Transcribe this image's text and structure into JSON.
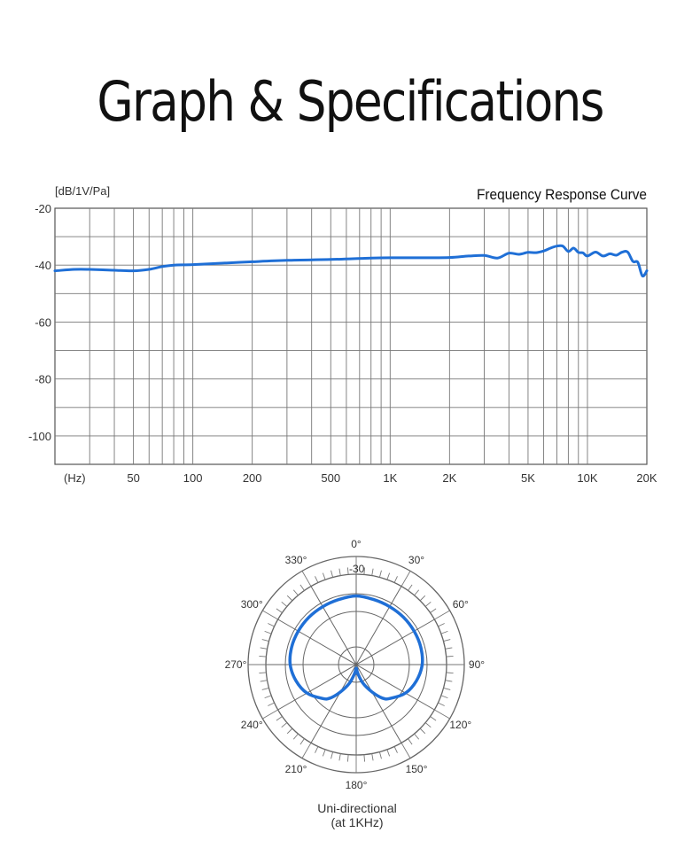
{
  "page": {
    "title": "Graph & Specifications"
  },
  "chart_data": [
    {
      "type": "line",
      "title": "Frequency Response Curve",
      "ylabel": "[dB/1V/Pa]",
      "xlabel": "(Hz)",
      "x_scale": "log",
      "xlim": [
        20,
        20000
      ],
      "ylim": [
        -110,
        -20
      ],
      "y_ticks": [
        -20,
        -40,
        -60,
        -80,
        -100
      ],
      "y_tick_labels": [
        "-20",
        "-40",
        "-60",
        "-80",
        "-100"
      ],
      "x_ticks": [
        50,
        100,
        200,
        500,
        1000,
        2000,
        5000,
        10000,
        20000
      ],
      "x_tick_labels": [
        "50",
        "100",
        "200",
        "500",
        "1K",
        "2K",
        "5K",
        "10K",
        "20K"
      ],
      "grid": true,
      "series": [
        {
          "color": "#1f6fd6",
          "x": [
            20,
            25,
            30,
            40,
            50,
            60,
            70,
            80,
            100,
            150,
            200,
            300,
            500,
            800,
            1000,
            1500,
            2000,
            2500,
            3000,
            3500,
            4000,
            4500,
            5000,
            5500,
            6000,
            6500,
            7000,
            7500,
            8000,
            8500,
            9000,
            9500,
            10000,
            11000,
            12000,
            13000,
            14000,
            15000,
            16000,
            17000,
            18000,
            19000,
            20000
          ],
          "y": [
            -42,
            -41.5,
            -41.5,
            -41.8,
            -42,
            -41.5,
            -40.5,
            -40,
            -39.8,
            -39.2,
            -38.8,
            -38.3,
            -38,
            -37.5,
            -37.4,
            -37.4,
            -37.3,
            -36.8,
            -36.6,
            -37.5,
            -35.8,
            -36.2,
            -35.5,
            -35.6,
            -35,
            -34,
            -33.3,
            -33.3,
            -35.2,
            -34,
            -35.5,
            -35.7,
            -36.8,
            -35.4,
            -36.8,
            -36,
            -36.5,
            -35.4,
            -35.4,
            -38.7,
            -39,
            -43.8,
            -42
          ]
        }
      ]
    },
    {
      "type": "polar",
      "title": "Uni-directional",
      "subtitle": "(at 1KHz)",
      "ring_label": "-30",
      "angle_labels": [
        "0°",
        "30°",
        "60°",
        "90°",
        "120°",
        "150°",
        "180°",
        "210°",
        "240°",
        "270°",
        "300°",
        "330°"
      ],
      "series": [
        {
          "color": "#1f6fd6",
          "angles_deg": [
            0,
            15,
            30,
            45,
            60,
            75,
            90,
            105,
            120,
            135,
            142,
            150,
            160,
            170,
            180,
            190,
            200,
            210,
            218,
            225,
            240,
            255,
            270,
            285,
            300,
            315,
            330,
            345,
            360
          ],
          "radius_fraction": [
            0.76,
            0.745,
            0.74,
            0.74,
            0.74,
            0.74,
            0.73,
            0.69,
            0.63,
            0.53,
            0.47,
            0.35,
            0.22,
            0.1,
            0.04,
            0.1,
            0.22,
            0.35,
            0.47,
            0.53,
            0.63,
            0.69,
            0.73,
            0.74,
            0.74,
            0.74,
            0.74,
            0.745,
            0.76
          ]
        }
      ]
    }
  ]
}
